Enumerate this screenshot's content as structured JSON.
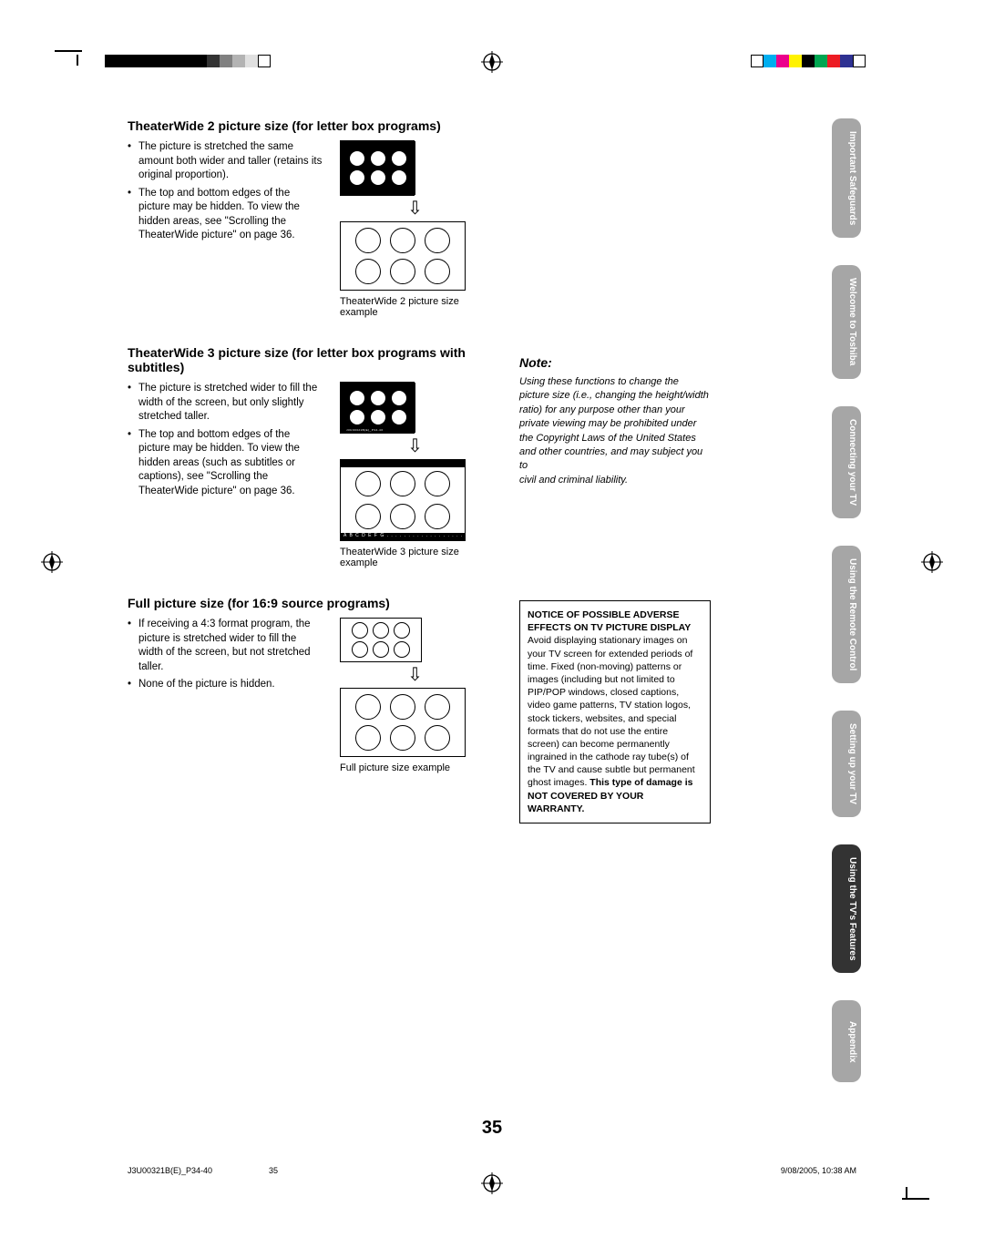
{
  "crop_colors_left": [
    "#000000",
    "#000000",
    "#000000",
    "#000000",
    "#000000",
    "#000000",
    "#000000",
    "#000000",
    "#333333",
    "#808080",
    "#b3b3b3",
    "#e0e0e0",
    "#ffffff"
  ],
  "crop_colors_right": [
    "#ffffff",
    "#00aeef",
    "#ec008c",
    "#fff200",
    "#000000",
    "#00a651",
    "#ed1c24",
    "#2e3192",
    "#ffffff"
  ],
  "headings": {
    "tw2": "TheaterWide 2 picture size (for letter box programs)",
    "tw3": "TheaterWide 3 picture size (for letter box programs with subtitles)",
    "full": "Full picture size (for 16:9 source programs)",
    "note": "Note:"
  },
  "bullets": {
    "tw2": [
      "The picture is stretched the same amount both wider and taller (retains its original proportion).",
      "The top and bottom edges of the picture may be hidden. To view the hidden areas, see \"Scrolling the TheaterWide picture\" on page 36."
    ],
    "tw3": [
      "The picture is stretched wider to fill the width of the screen, but only slightly stretched taller.",
      "The top and bottom edges of the picture may be hidden. To view the hidden areas (such as subtitles or captions), see \"Scrolling the TheaterWide picture\" on page 36."
    ],
    "full": [
      "If receiving a 4:3 format program, the picture is stretched wider to fill the width of the screen, but not stretched taller.",
      "None of the picture is hidden."
    ]
  },
  "captions": {
    "tw2": "TheaterWide 2 picture size example",
    "tw3": "TheaterWide 3 picture size example",
    "full": "Full picture size example"
  },
  "note_text": "Using these functions to change the picture size (i.e., changing the height/width ratio) for any purpose other than your private viewing may be prohibited under the Copyright Laws of the United States and other countries, and may subject you to\ncivil and criminal liability.",
  "notice": {
    "header": "NOTICE OF POSSIBLE ADVERSE EFFECTS ON TV PICTURE DISPLAY",
    "body_pre": "Avoid displaying stationary images on your TV screen for extended periods of time. Fixed (non-moving) patterns or images (including but not limited to PIP/POP windows, closed captions, video game patterns, TV station logos, stock tickers, websites, and special formats that do not use the entire screen) can become permanently ingrained in the cathode ray tube(s) of the TV and cause subtle but permanent ghost images. ",
    "body_bold": "This type of damage is NOT COVERED BY YOUR WARRANTY."
  },
  "tabs": [
    {
      "label": "Important Safeguards",
      "active": false
    },
    {
      "label": "Welcome to Toshiba",
      "active": false
    },
    {
      "label": "Connecting your TV",
      "active": false
    },
    {
      "label": "Using the Remote Control",
      "active": false
    },
    {
      "label": "Setting up your TV",
      "active": false
    },
    {
      "label": "Using the TV's Features",
      "active": true
    },
    {
      "label": "Appendix",
      "active": false
    }
  ],
  "page_number": "35",
  "footer": {
    "left": "J3U00321B(E)_P34-40",
    "mid": "35",
    "right": "9/08/2005, 10:38 AM"
  },
  "subtitle_text": "A B C D E F G . . . . . . . . . . . . . . . . . . . . . . . . ."
}
